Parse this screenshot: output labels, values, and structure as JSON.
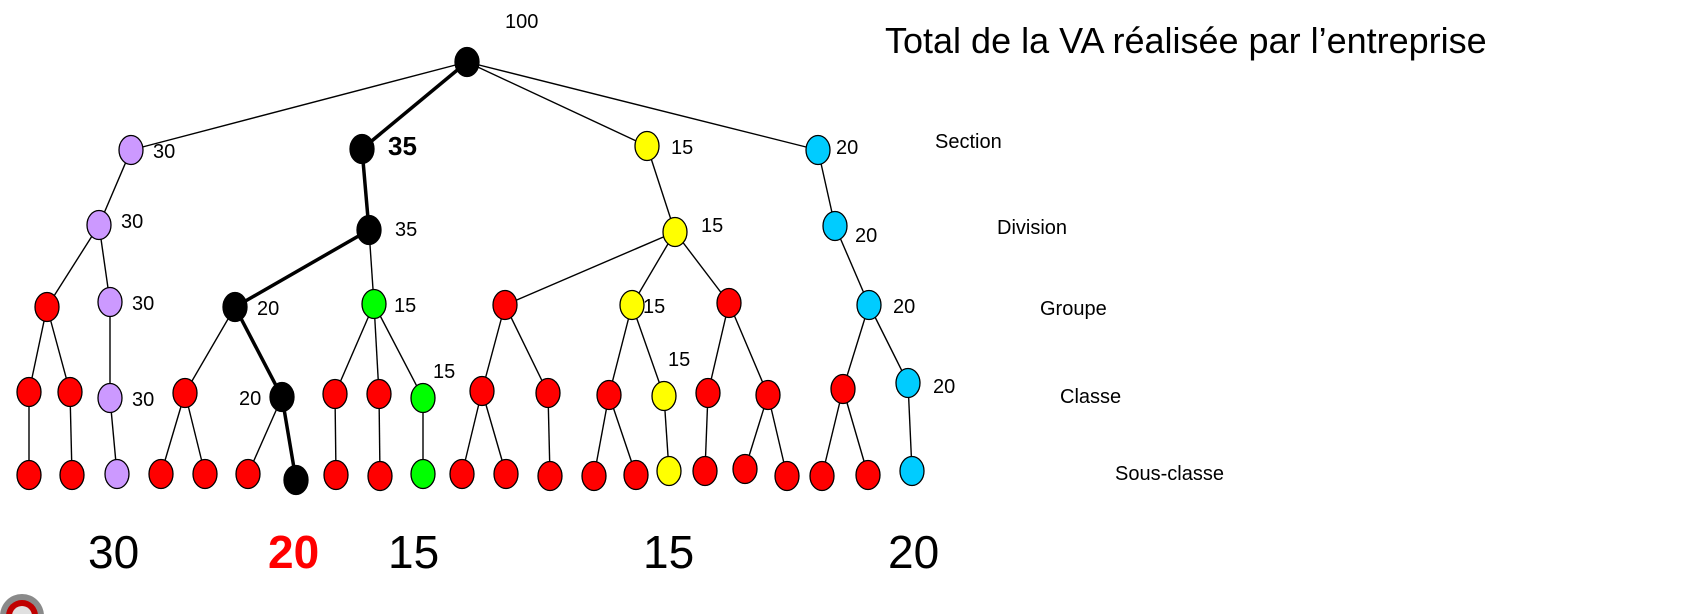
{
  "heading": "Total de la VA réalisée par l’entreprise",
  "levels": {
    "section": "Section",
    "division": "Division",
    "groupe": "Groupe",
    "classe": "Classe",
    "sous_classe": "Sous-classe"
  },
  "totals": [
    "30",
    "20",
    "15",
    "15",
    "20"
  ],
  "colors": {
    "black": "#000000",
    "purple": "#cc99ff",
    "yellow": "#ffff00",
    "cyan": "#00ccff",
    "green": "#00ff00",
    "red": "#ff0000"
  },
  "tree": {
    "value": "100",
    "color": "black",
    "children": [
      {
        "value": "30",
        "color": "purple",
        "children": [
          {
            "value": "30",
            "color": "purple",
            "children": [
              {
                "value": "",
                "color": "red",
                "children": [
                  {
                    "value": "",
                    "color": "red",
                    "children": [
                      {
                        "value": "",
                        "color": "red",
                        "children": []
                      }
                    ]
                  },
                  {
                    "value": "",
                    "color": "red",
                    "children": [
                      {
                        "value": "",
                        "color": "red",
                        "children": []
                      }
                    ]
                  }
                ]
              },
              {
                "value": "30",
                "color": "purple",
                "children": [
                  {
                    "value": "30",
                    "color": "purple",
                    "children": [
                      {
                        "value": "",
                        "color": "purple",
                        "children": []
                      }
                    ]
                  }
                ]
              }
            ]
          }
        ]
      },
      {
        "value": "35",
        "color": "black",
        "bold": true,
        "path": true,
        "children": [
          {
            "value": "35",
            "color": "black",
            "path": true,
            "children": [
              {
                "value": "20",
                "color": "black",
                "path": true,
                "children": [
                  {
                    "value": "",
                    "color": "red",
                    "children": [
                      {
                        "value": "",
                        "color": "red",
                        "children": []
                      },
                      {
                        "value": "",
                        "color": "red",
                        "children": []
                      }
                    ]
                  },
                  {
                    "value": "20",
                    "color": "black",
                    "path": true,
                    "children": [
                      {
                        "value": "",
                        "color": "red",
                        "children": []
                      },
                      {
                        "value": "",
                        "color": "black",
                        "path": true,
                        "children": []
                      }
                    ]
                  }
                ]
              },
              {
                "value": "15",
                "color": "green",
                "children": [
                  {
                    "value": "",
                    "color": "red",
                    "children": [
                      {
                        "value": "",
                        "color": "red",
                        "children": []
                      }
                    ]
                  },
                  {
                    "value": "",
                    "color": "red",
                    "children": [
                      {
                        "value": "",
                        "color": "red",
                        "children": []
                      }
                    ]
                  },
                  {
                    "value": "15",
                    "color": "green",
                    "children": [
                      {
                        "value": "",
                        "color": "green",
                        "children": []
                      }
                    ]
                  }
                ]
              }
            ]
          }
        ]
      },
      {
        "value": "15",
        "color": "yellow",
        "children": [
          {
            "value": "15",
            "color": "yellow",
            "children": [
              {
                "value": "",
                "color": "red",
                "children": [
                  {
                    "value": "",
                    "color": "red",
                    "children": [
                      {
                        "value": "",
                        "color": "red",
                        "children": []
                      },
                      {
                        "value": "",
                        "color": "red",
                        "children": []
                      }
                    ]
                  },
                  {
                    "value": "",
                    "color": "red",
                    "children": [
                      {
                        "value": "",
                        "color": "red",
                        "children": []
                      }
                    ]
                  }
                ]
              },
              {
                "value": "15",
                "color": "yellow",
                "children": [
                  {
                    "value": "",
                    "color": "red",
                    "children": [
                      {
                        "value": "",
                        "color": "red",
                        "children": []
                      },
                      {
                        "value": "",
                        "color": "red",
                        "children": []
                      }
                    ]
                  },
                  {
                    "value": "15",
                    "color": "yellow",
                    "children": [
                      {
                        "value": "",
                        "color": "yellow",
                        "children": []
                      }
                    ]
                  }
                ]
              },
              {
                "value": "",
                "color": "red",
                "children": [
                  {
                    "value": "",
                    "color": "red",
                    "children": [
                      {
                        "value": "",
                        "color": "red",
                        "children": []
                      }
                    ]
                  },
                  {
                    "value": "",
                    "color": "red",
                    "children": [
                      {
                        "value": "",
                        "color": "red",
                        "children": []
                      },
                      {
                        "value": "",
                        "color": "red",
                        "children": []
                      }
                    ]
                  }
                ]
              }
            ]
          }
        ]
      },
      {
        "value": "20",
        "color": "cyan",
        "children": [
          {
            "value": "20",
            "color": "cyan",
            "children": [
              {
                "value": "20",
                "color": "cyan",
                "children": [
                  {
                    "value": "",
                    "color": "red",
                    "children": [
                      {
                        "value": "",
                        "color": "red",
                        "children": []
                      },
                      {
                        "value": "",
                        "color": "red",
                        "children": []
                      }
                    ]
                  },
                  {
                    "value": "20",
                    "color": "cyan",
                    "children": [
                      {
                        "value": "",
                        "color": "cyan",
                        "children": []
                      }
                    ]
                  }
                ]
              }
            ]
          }
        ]
      }
    ]
  }
}
